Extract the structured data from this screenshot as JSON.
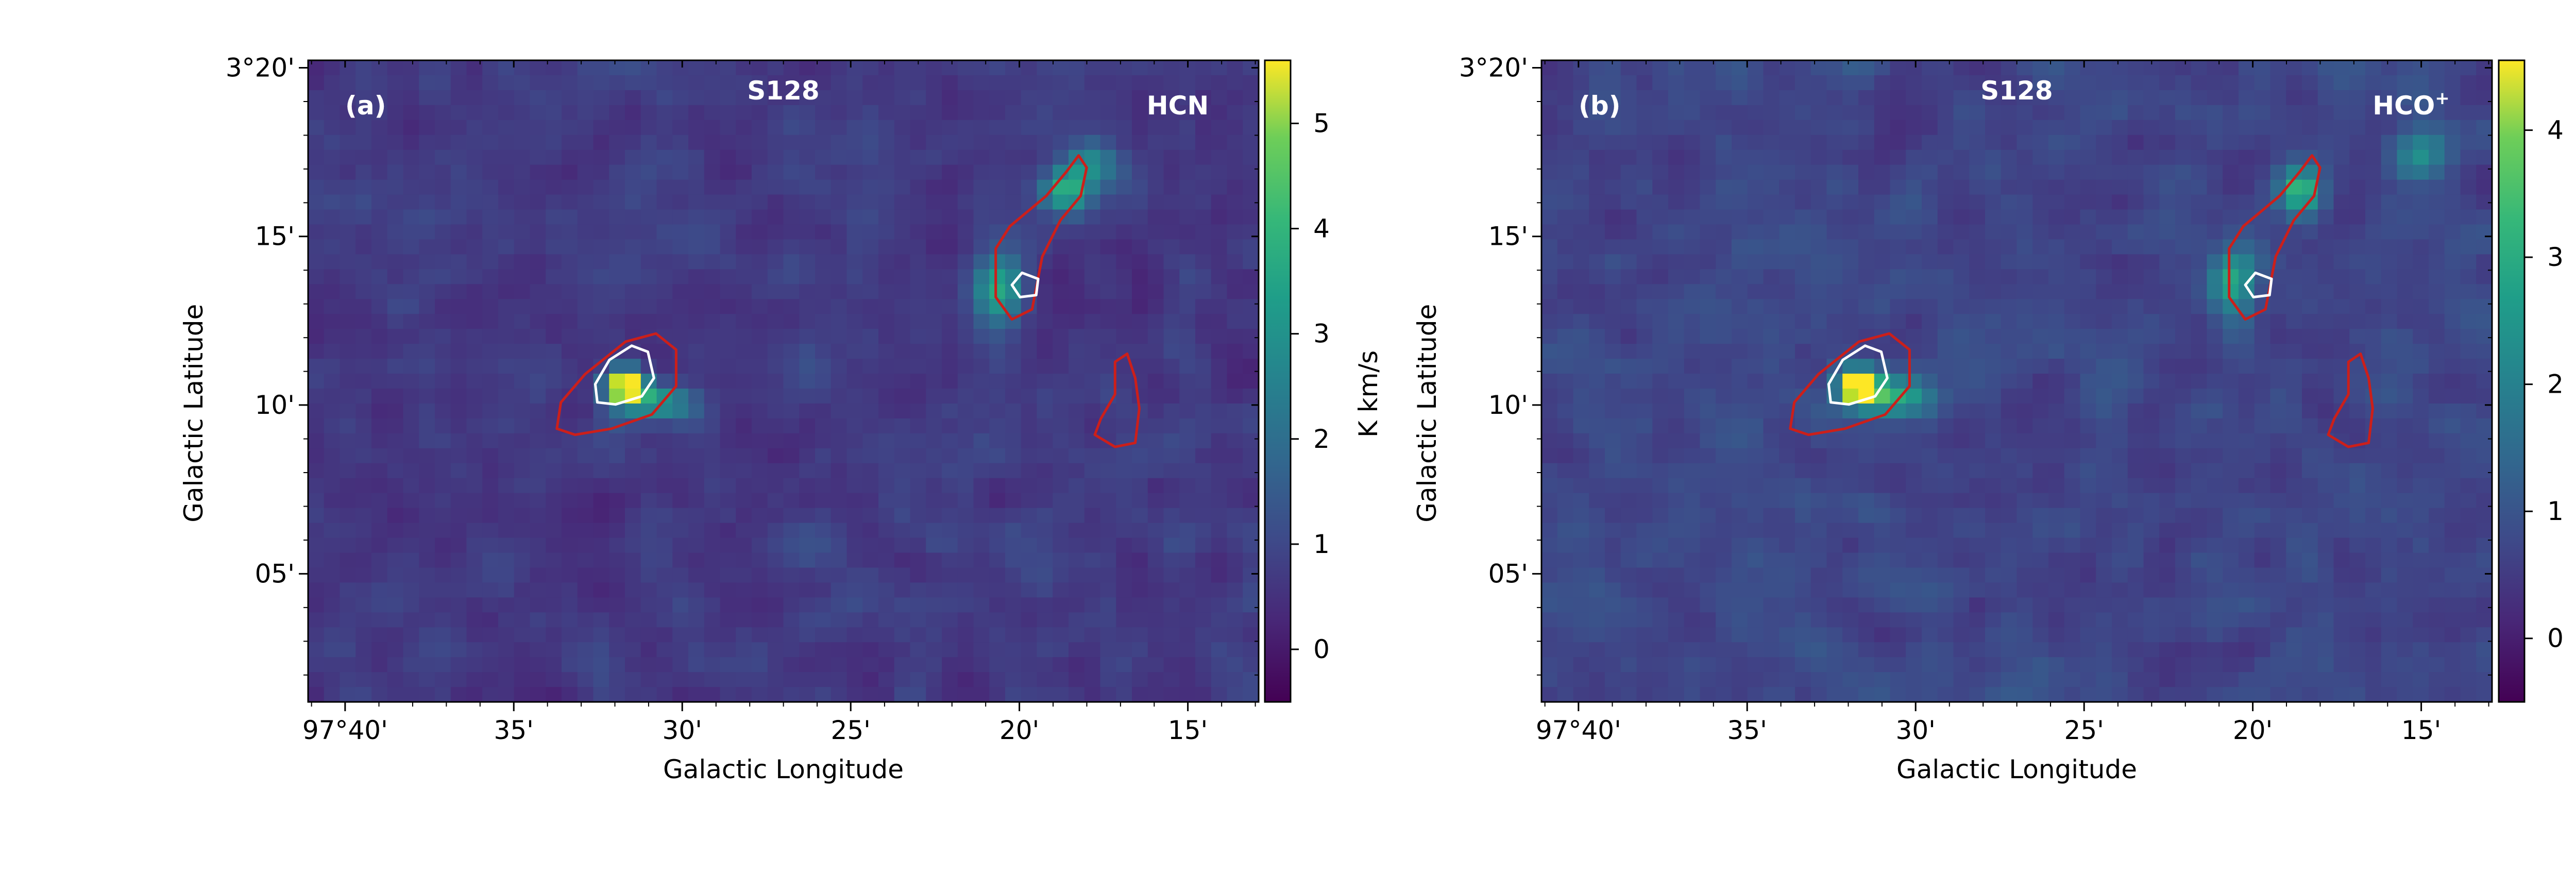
{
  "chart_data": [
    {
      "type": "heatmap",
      "panel_label": "(a)",
      "source": "S128",
      "molecule": "HCN",
      "molecule_sup": "",
      "xlabel": "Galactic Longitude",
      "ylabel": "Galactic Latitude",
      "xticks": [
        {
          "value": 97.6667,
          "label": "97°40'"
        },
        {
          "value": 97.5833,
          "label": "35'"
        },
        {
          "value": 97.5,
          "label": "30'"
        },
        {
          "value": 97.4167,
          "label": "25'"
        },
        {
          "value": 97.3333,
          "label": "20'"
        },
        {
          "value": 97.25,
          "label": "15'"
        }
      ],
      "yticks": [
        {
          "value": 3.3333,
          "label": "3°20'"
        },
        {
          "value": 3.25,
          "label": "15'"
        },
        {
          "value": 3.1667,
          "label": "10'"
        },
        {
          "value": 3.0833,
          "label": "05'"
        }
      ],
      "xlim": [
        97.685,
        97.215
      ],
      "ylim": [
        3.02,
        3.337
      ],
      "colorbar": {
        "label": "K km/s",
        "range": [
          -0.5,
          5.6
        ],
        "ticks": [
          {
            "value": 0,
            "label": "0"
          },
          {
            "value": 1,
            "label": "1"
          },
          {
            "value": 2,
            "label": "2"
          },
          {
            "value": 3,
            "label": "3"
          },
          {
            "value": 4,
            "label": "4"
          },
          {
            "value": 5,
            "label": "5"
          }
        ]
      },
      "noise_level": 0.4,
      "sources": [
        {
          "l": 97.528,
          "b": 3.176,
          "peak": 6.0,
          "sl": 0.0065,
          "sb": 0.0055
        },
        {
          "l": 97.512,
          "b": 3.168,
          "peak": 2.4,
          "sl": 0.012,
          "sb": 0.006
        },
        {
          "l": 97.343,
          "b": 3.225,
          "peak": 2.6,
          "sl": 0.008,
          "sb": 0.012
        },
        {
          "l": 97.311,
          "b": 3.272,
          "peak": 2.4,
          "sl": 0.008,
          "sb": 0.008
        },
        {
          "l": 97.298,
          "b": 3.285,
          "peak": 1.6,
          "sl": 0.01,
          "sb": 0.01
        }
      ],
      "contours": [
        {
          "color": "#cc1f1a",
          "points": [
            [
              97.562,
              3.155
            ],
            [
              97.553,
              3.152
            ],
            [
              97.535,
              3.155
            ],
            [
              97.515,
              3.162
            ],
            [
              97.503,
              3.176
            ],
            [
              97.503,
              3.194
            ],
            [
              97.513,
              3.202
            ],
            [
              97.528,
              3.198
            ],
            [
              97.548,
              3.182
            ],
            [
              97.56,
              3.168
            ]
          ]
        },
        {
          "color": "#ffffff",
          "points": [
            [
              97.542,
              3.168
            ],
            [
              97.533,
              3.167
            ],
            [
              97.52,
              3.171
            ],
            [
              97.514,
              3.18
            ],
            [
              97.517,
              3.193
            ],
            [
              97.525,
              3.196
            ],
            [
              97.536,
              3.189
            ],
            [
              97.543,
              3.177
            ]
          ]
        },
        {
          "color": "#cc1f1a",
          "points": [
            [
              97.345,
              3.244
            ],
            [
              97.338,
              3.255
            ],
            [
              97.32,
              3.27
            ],
            [
              97.31,
              3.282
            ],
            [
              97.304,
              3.29
            ],
            [
              97.3,
              3.284
            ],
            [
              97.303,
              3.27
            ],
            [
              97.313,
              3.258
            ],
            [
              97.322,
              3.24
            ],
            [
              97.327,
              3.214
            ],
            [
              97.337,
              3.209
            ],
            [
              97.345,
              3.22
            ]
          ]
        },
        {
          "color": "#ffffff",
          "points": [
            [
              97.337,
              3.226
            ],
            [
              97.333,
              3.22
            ],
            [
              97.325,
              3.221
            ],
            [
              97.324,
              3.229
            ],
            [
              97.332,
              3.232
            ]
          ]
        },
        {
          "color": "#cc1f1a",
          "points": [
            [
              97.28,
              3.192
            ],
            [
              97.276,
              3.18
            ],
            [
              97.274,
              3.165
            ],
            [
              97.276,
              3.148
            ],
            [
              97.286,
              3.146
            ],
            [
              97.296,
              3.152
            ],
            [
              97.293,
              3.16
            ],
            [
              97.286,
              3.172
            ],
            [
              97.286,
              3.188
            ]
          ]
        }
      ]
    },
    {
      "type": "heatmap",
      "panel_label": "(b)",
      "source": "S128",
      "molecule": "HCO",
      "molecule_sup": "+",
      "xlabel": "Galactic Longitude",
      "ylabel": "Galactic Latitude",
      "xticks": [
        {
          "value": 97.6667,
          "label": "97°40'"
        },
        {
          "value": 97.5833,
          "label": "35'"
        },
        {
          "value": 97.5,
          "label": "30'"
        },
        {
          "value": 97.4167,
          "label": "25'"
        },
        {
          "value": 97.3333,
          "label": "20'"
        },
        {
          "value": 97.25,
          "label": "15'"
        }
      ],
      "yticks": [
        {
          "value": 3.3333,
          "label": "3°20'"
        },
        {
          "value": 3.25,
          "label": "15'"
        },
        {
          "value": 3.1667,
          "label": "10'"
        },
        {
          "value": 3.0833,
          "label": "05'"
        }
      ],
      "xlim": [
        97.685,
        97.215
      ],
      "ylim": [
        3.02,
        3.337
      ],
      "colorbar": {
        "label": "K km/s",
        "range": [
          -0.5,
          4.55
        ],
        "ticks": [
          {
            "value": 0,
            "label": "0"
          },
          {
            "value": 1,
            "label": "1"
          },
          {
            "value": 2,
            "label": "2"
          },
          {
            "value": 3,
            "label": "3"
          },
          {
            "value": 4,
            "label": "4"
          }
        ]
      },
      "noise_level": 0.32,
      "sources": [
        {
          "l": 97.528,
          "b": 3.176,
          "peak": 5.2,
          "sl": 0.0065,
          "sb": 0.0055
        },
        {
          "l": 97.51,
          "b": 3.17,
          "peak": 2.2,
          "sl": 0.013,
          "sb": 0.007
        },
        {
          "l": 97.343,
          "b": 3.228,
          "peak": 2.0,
          "sl": 0.008,
          "sb": 0.012
        },
        {
          "l": 97.31,
          "b": 3.272,
          "peak": 2.6,
          "sl": 0.007,
          "sb": 0.008
        },
        {
          "l": 97.25,
          "b": 3.29,
          "peak": 1.3,
          "sl": 0.01,
          "sb": 0.01
        }
      ],
      "contours": [
        {
          "color": "#cc1f1a",
          "points": [
            [
              97.562,
              3.155
            ],
            [
              97.553,
              3.152
            ],
            [
              97.535,
              3.155
            ],
            [
              97.515,
              3.162
            ],
            [
              97.503,
              3.176
            ],
            [
              97.503,
              3.194
            ],
            [
              97.513,
              3.202
            ],
            [
              97.528,
              3.198
            ],
            [
              97.548,
              3.182
            ],
            [
              97.56,
              3.168
            ]
          ]
        },
        {
          "color": "#ffffff",
          "points": [
            [
              97.542,
              3.168
            ],
            [
              97.533,
              3.167
            ],
            [
              97.52,
              3.171
            ],
            [
              97.514,
              3.18
            ],
            [
              97.517,
              3.193
            ],
            [
              97.525,
              3.196
            ],
            [
              97.536,
              3.189
            ],
            [
              97.543,
              3.177
            ]
          ]
        },
        {
          "color": "#cc1f1a",
          "points": [
            [
              97.345,
              3.244
            ],
            [
              97.338,
              3.255
            ],
            [
              97.32,
              3.27
            ],
            [
              97.31,
              3.282
            ],
            [
              97.304,
              3.29
            ],
            [
              97.3,
              3.284
            ],
            [
              97.303,
              3.27
            ],
            [
              97.313,
              3.258
            ],
            [
              97.322,
              3.24
            ],
            [
              97.327,
              3.214
            ],
            [
              97.337,
              3.209
            ],
            [
              97.345,
              3.22
            ]
          ]
        },
        {
          "color": "#ffffff",
          "points": [
            [
              97.337,
              3.226
            ],
            [
              97.333,
              3.22
            ],
            [
              97.325,
              3.221
            ],
            [
              97.324,
              3.229
            ],
            [
              97.332,
              3.232
            ]
          ]
        },
        {
          "color": "#cc1f1a",
          "points": [
            [
              97.28,
              3.192
            ],
            [
              97.276,
              3.18
            ],
            [
              97.274,
              3.165
            ],
            [
              97.276,
              3.148
            ],
            [
              97.286,
              3.146
            ],
            [
              97.296,
              3.152
            ],
            [
              97.293,
              3.16
            ],
            [
              97.286,
              3.172
            ],
            [
              97.286,
              3.188
            ]
          ]
        }
      ]
    }
  ]
}
